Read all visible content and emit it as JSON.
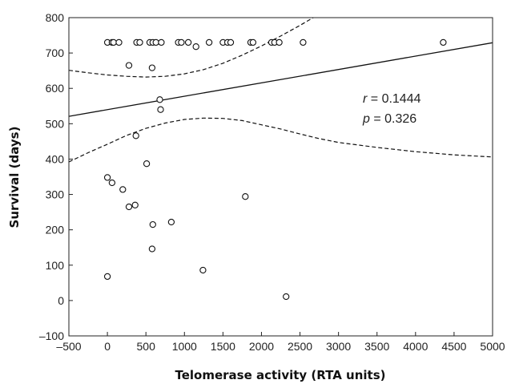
{
  "chart_data": {
    "type": "scatter",
    "xlabel": "Telomerase activity (RTA units)",
    "ylabel": "Survival (days)",
    "xlim": [
      -500,
      5000
    ],
    "ylim": [
      -100,
      800
    ],
    "xticks": [
      -500,
      0,
      500,
      1000,
      1500,
      2000,
      2500,
      3000,
      3500,
      4000,
      4500,
      5000
    ],
    "yticks": [
      -100,
      0,
      100,
      200,
      300,
      400,
      500,
      600,
      700,
      800
    ],
    "xtick_labels": [
      "–500",
      "0",
      "500",
      "1000",
      "1500",
      "2000",
      "2500",
      "3000",
      "3500",
      "4000",
      "4500",
      "5000"
    ],
    "ytick_labels": [
      "–100",
      "0",
      "100",
      "200",
      "300",
      "400",
      "500",
      "600",
      "700",
      "800"
    ],
    "grid": false,
    "points": [
      {
        "x": 0,
        "y": 730
      },
      {
        "x": 60,
        "y": 730
      },
      {
        "x": 80,
        "y": 730
      },
      {
        "x": 150,
        "y": 730
      },
      {
        "x": 380,
        "y": 730
      },
      {
        "x": 420,
        "y": 730
      },
      {
        "x": 550,
        "y": 730
      },
      {
        "x": 590,
        "y": 730
      },
      {
        "x": 630,
        "y": 730
      },
      {
        "x": 700,
        "y": 730
      },
      {
        "x": 920,
        "y": 730
      },
      {
        "x": 960,
        "y": 730
      },
      {
        "x": 1050,
        "y": 730
      },
      {
        "x": 1320,
        "y": 730
      },
      {
        "x": 1500,
        "y": 730
      },
      {
        "x": 1560,
        "y": 730
      },
      {
        "x": 1600,
        "y": 730
      },
      {
        "x": 1860,
        "y": 730
      },
      {
        "x": 1890,
        "y": 730
      },
      {
        "x": 2130,
        "y": 730
      },
      {
        "x": 2170,
        "y": 730
      },
      {
        "x": 2230,
        "y": 730
      },
      {
        "x": 2540,
        "y": 730
      },
      {
        "x": 4360,
        "y": 730
      },
      {
        "x": 1150,
        "y": 718
      },
      {
        "x": 280,
        "y": 665
      },
      {
        "x": 580,
        "y": 658
      },
      {
        "x": 680,
        "y": 568
      },
      {
        "x": 690,
        "y": 540
      },
      {
        "x": 370,
        "y": 466
      },
      {
        "x": 510,
        "y": 387
      },
      {
        "x": 0,
        "y": 348
      },
      {
        "x": 60,
        "y": 333
      },
      {
        "x": 200,
        "y": 314
      },
      {
        "x": 1790,
        "y": 294
      },
      {
        "x": 360,
        "y": 270
      },
      {
        "x": 280,
        "y": 265
      },
      {
        "x": 830,
        "y": 222
      },
      {
        "x": 590,
        "y": 215
      },
      {
        "x": 580,
        "y": 146
      },
      {
        "x": 1240,
        "y": 86
      },
      {
        "x": 0,
        "y": 68
      },
      {
        "x": 2320,
        "y": 11
      }
    ],
    "regression_line": {
      "x": [
        -500,
        5000
      ],
      "y": [
        521,
        729
      ]
    },
    "confidence_upper": {
      "x": [
        -500,
        -250,
        0,
        250,
        500,
        750,
        1000,
        1250,
        1500,
        1750,
        2000,
        2250,
        2500,
        2750
      ],
      "y": [
        651,
        644,
        638,
        634,
        632,
        634,
        641,
        653,
        671,
        694,
        720,
        748,
        778,
        810
      ]
    },
    "confidence_lower": {
      "x": [
        -500,
        -250,
        0,
        250,
        500,
        750,
        1000,
        1250,
        1500,
        1750,
        2000,
        2250,
        2500,
        2750,
        3000,
        3500,
        4000,
        4500,
        5000
      ],
      "y": [
        392,
        418,
        442,
        467,
        487,
        502,
        512,
        516,
        515,
        509,
        497,
        485,
        471,
        458,
        447,
        433,
        421,
        412,
        406
      ]
    },
    "annotation": {
      "r_symbol": "r",
      "r_text": " = 0.1444",
      "p_symbol": "p",
      "p_text": " = 0.326",
      "at": {
        "x": 3250,
        "y": 580
      }
    },
    "colors": {
      "marker": "#111111",
      "line": "#111111",
      "axis": "#222222"
    }
  }
}
